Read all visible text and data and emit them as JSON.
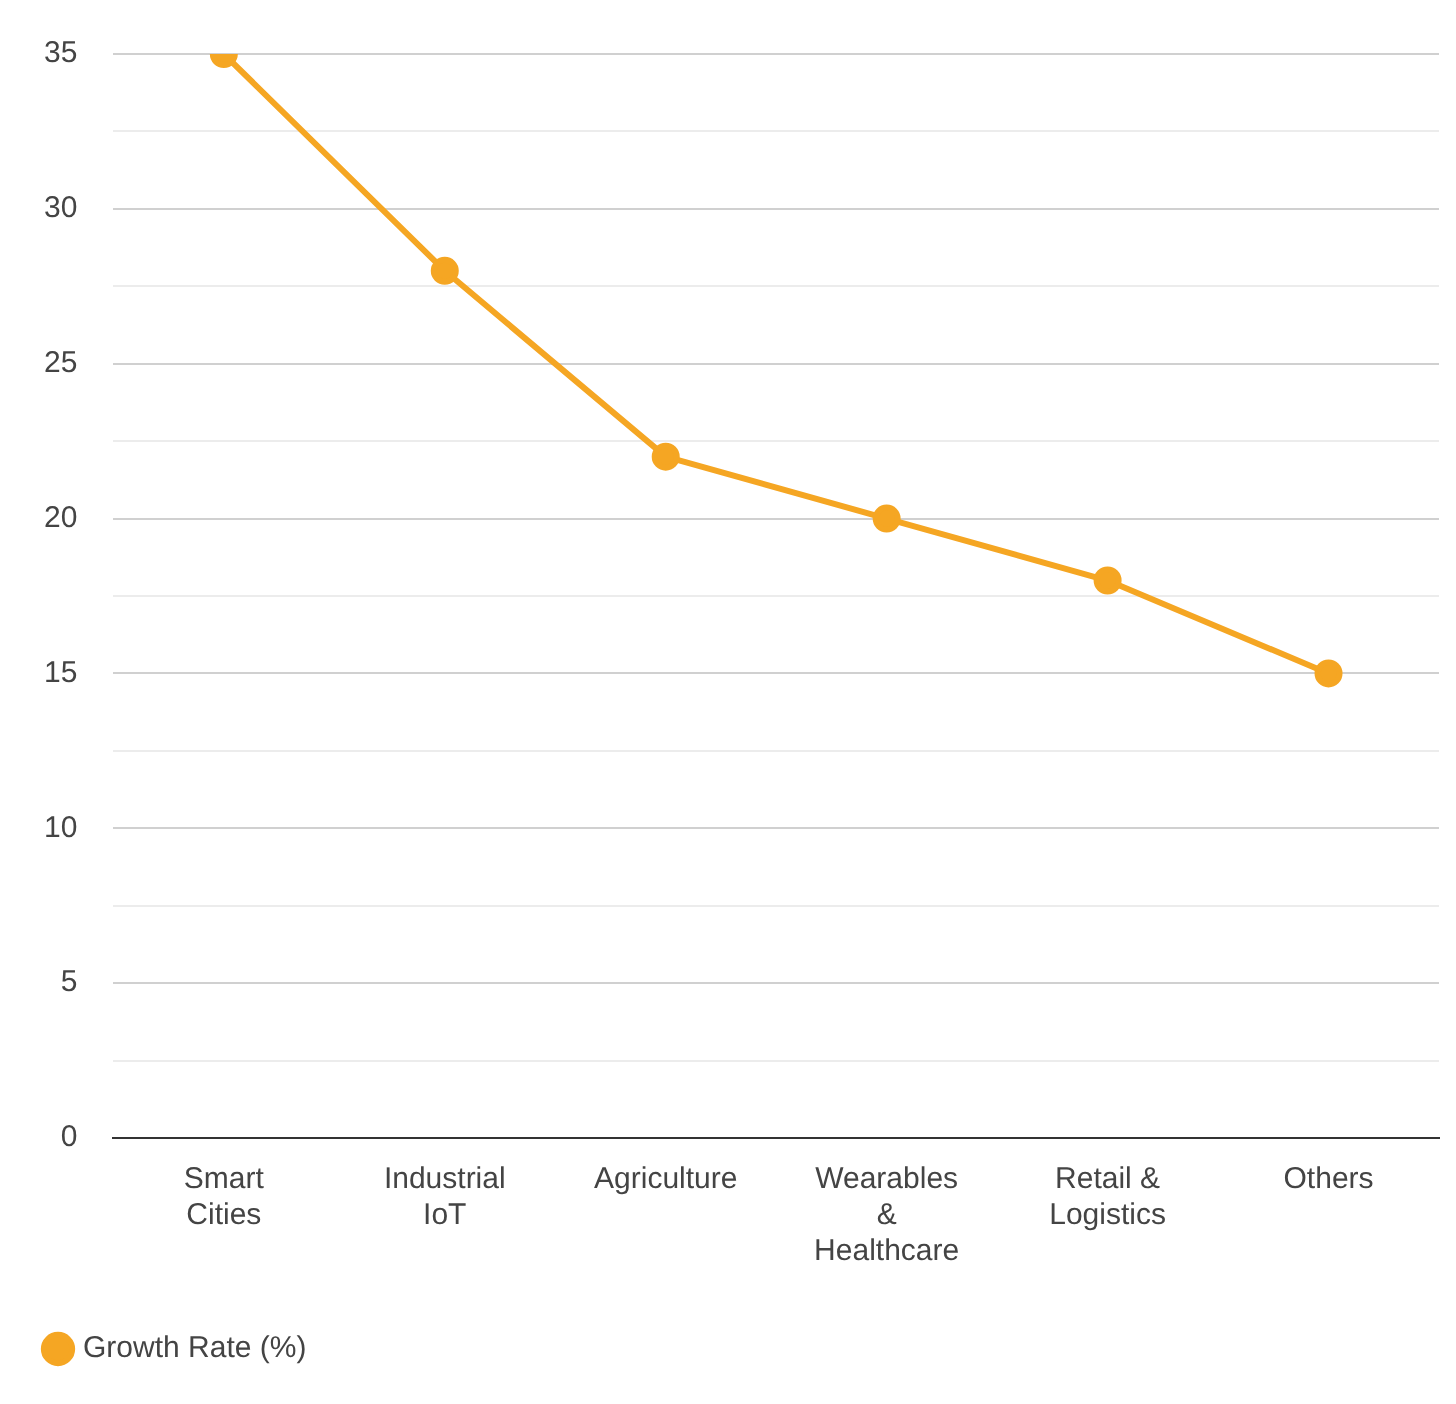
{
  "chart_data": {
    "type": "line",
    "categories": [
      "Smart Cities",
      "Industrial IoT",
      "Agriculture",
      "Wearables & Healthcare",
      "Retail & Logistics",
      "Others"
    ],
    "series": [
      {
        "name": "Growth Rate (%)",
        "color": "#f5a623",
        "values": [
          35,
          28,
          22,
          20,
          18,
          15
        ]
      }
    ],
    "ylim": [
      0,
      35
    ],
    "yticks": [
      0,
      {
        "value": 2.5,
        "label": null
      },
      5,
      {
        "value": 7.5,
        "label": null
      },
      10,
      {
        "value": 12.5,
        "label": null
      },
      15,
      {
        "value": 17.5,
        "label": null
      },
      20,
      {
        "value": 22.5,
        "label": null
      },
      25,
      {
        "value": 27.5,
        "label": null
      },
      30,
      {
        "value": 32.5,
        "label": null
      },
      35
    ],
    "grid": "y",
    "legend": "bottom left",
    "marker": "circle",
    "line_style": "solid"
  }
}
